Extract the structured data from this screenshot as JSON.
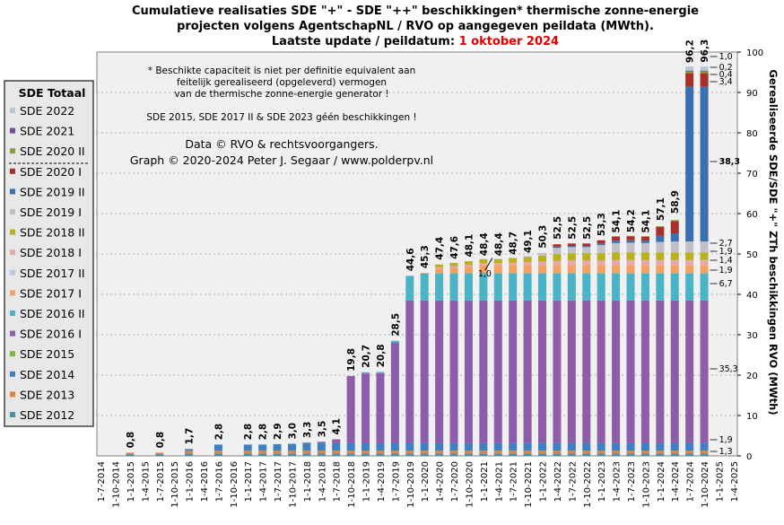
{
  "title": {
    "line1": "Cumulatieve realisaties SDE \"+\" - SDE \"++\" beschikkingen*  thermische zonne-energie",
    "line2": "projecten volgens AgentschapNL  / RVO op aangegeven peildata (MWth).",
    "line3_prefix": "Laatste update / peildatum: ",
    "line3_date": "1 oktober 2024"
  },
  "notes": {
    "line1": "* Beschikte capaciteit is niet per definitie equivalent aan",
    "line2": "feitelijk gerealiseerd (opgeleverd) vermogen",
    "line3": "van de thermische zonne-energie generator !",
    "line4": "SDE 2015, SDE 2017 II & SDE 2023 géén beschikkingen !",
    "credit1": "Data © RVO & rechtsvoorgangers.",
    "credit2": "Graph  © 2020-2024  Peter J. Segaar / www.polderpv.nl"
  },
  "colors": {
    "SDE 2012": "#4a8fa8",
    "SDE 2013": "#e0843c",
    "SDE 2014": "#3f7fc4",
    "SDE 2015": "#7fb64a",
    "SDE 2016 I": "#8e5ca8",
    "SDE 2016 II": "#4bb3c8",
    "SDE 2017 I": "#f4a060",
    "SDE 2017 II": "#b8c8e0",
    "SDE 2018 I": "#e6a8a8",
    "SDE 2018 II": "#b8b020",
    "SDE 2019 I": "#c0c0c8",
    "SDE 2019 II": "#3a6fb0",
    "SDE 2020 I": "#a83028",
    "SDE 2020 II": "#8aa03a",
    "SDE 2021": "#7a4a9a",
    "SDE 2022": "#b0c8d8",
    "plot_bg": "#f0f0f0",
    "legend_bg": "#e8e8e8",
    "accent_red": "#e00000"
  },
  "legend": {
    "title": "SDE Totaal",
    "items": [
      "SDE 2022",
      "SDE 2021",
      "SDE 2020 II",
      "SDE 2020 I",
      "SDE 2019 II",
      "SDE 2019 I",
      "SDE 2018 II",
      "SDE 2018 I",
      "SDE 2017 II",
      "SDE 2017 I",
      "SDE 2016 II",
      "SDE 2016 I",
      "SDE 2015",
      "SDE 2014",
      "SDE 2013",
      "SDE 2012"
    ],
    "highlighted": "SDE 2016 I"
  },
  "chart_data": {
    "type": "bar",
    "stacked": true,
    "ylabel": "Gerealiseerde SDE/SDE \"+\" ZTh beschikkingen RVO (MWth)",
    "ylim": [
      0,
      100
    ],
    "yticks": [
      0,
      10,
      20,
      30,
      40,
      50,
      60,
      70,
      80,
      90,
      100
    ],
    "y_axis_position": "right",
    "grid": true,
    "legend_position": "left",
    "categories": [
      "1-7-2014",
      "1-10-2014",
      "1-1-2015",
      "1-4-2015",
      "1-7-2015",
      "1-10-2015",
      "1-1-2016",
      "1-4-2016",
      "1-7-2016",
      "1-10-2016",
      "1-1-2017",
      "1-4-2017",
      "1-7-2017",
      "1-10-2017",
      "1-1-2018",
      "1-4-2018",
      "1-7-2018",
      "1-10-2018",
      "1-1-2019",
      "1-4-2019",
      "1-7-2019",
      "1-10-2019",
      "1-1-2020",
      "1-4-2020",
      "1-7-2020",
      "1-10-2020",
      "1-1-2021",
      "1-4-2021",
      "1-7-2021",
      "1-10-2021",
      "1-1-2022",
      "1-4-2022",
      "1-7-2022",
      "1-10-2022",
      "1-1-2023",
      "1-4-2023",
      "1-7-2023",
      "1-10-2023",
      "1-1-2024",
      "1-4-2024",
      "1-7-2024",
      "1-10-2024",
      "1-1-2025",
      "1-4-2025"
    ],
    "totals": [
      null,
      null,
      0.8,
      null,
      0.8,
      null,
      1.7,
      null,
      2.8,
      null,
      2.8,
      2.8,
      2.9,
      3.0,
      3.3,
      3.5,
      4.1,
      19.8,
      20.7,
      20.8,
      28.5,
      44.6,
      45.3,
      47.4,
      47.6,
      48.1,
      48.4,
      48.4,
      48.7,
      49.1,
      50.3,
      52.5,
      52.5,
      52.5,
      53.3,
      54.1,
      54.2,
      54.1,
      57.1,
      58.9,
      96.2,
      96.3,
      null,
      null
    ],
    "bar_labels": [
      "",
      "",
      "0,8",
      "",
      "0,8",
      "",
      "1,7",
      "",
      "2,8",
      "",
      "2,8",
      "2,8",
      "2,9",
      "3,0",
      "3,3",
      "3,5",
      "4,1",
      "19,8",
      "20,7",
      "20,8",
      "28,5",
      "44,6",
      "45,3",
      "47,4",
      "47,6",
      "48,1",
      "48,4",
      "48,4",
      "48,7",
      "49,1",
      "50,3",
      "52,5",
      "52,5",
      "52,5",
      "53,3",
      "54,1",
      "54,2",
      "54,1",
      "57,1",
      "58,9",
      "96,2",
      "96,3",
      "",
      ""
    ],
    "series": [
      {
        "name": "SDE 2012",
        "values": [
          0,
          0,
          0.5,
          0,
          0.5,
          0,
          0.6,
          0,
          0.6,
          0,
          0.6,
          0.6,
          0.6,
          0.6,
          0.6,
          0.6,
          0.6,
          0.6,
          0.6,
          0.6,
          0.6,
          0.6,
          0.6,
          0.6,
          0.6,
          0.6,
          0.6,
          0.6,
          0.6,
          0.6,
          0.6,
          0.6,
          0.6,
          0.6,
          0.6,
          0.6,
          0.6,
          0.6,
          0.6,
          0.6,
          0.6,
          0.6,
          0,
          0
        ]
      },
      {
        "name": "SDE 2013",
        "values": [
          0,
          0,
          0.3,
          0,
          0.3,
          0,
          0.7,
          0,
          0.7,
          0,
          0.7,
          0.7,
          0.7,
          0.7,
          0.7,
          0.7,
          0.7,
          0.7,
          0.7,
          0.7,
          0.7,
          0.7,
          0.7,
          0.7,
          0.7,
          0.7,
          0.7,
          0.7,
          0.7,
          0.7,
          0.7,
          0.7,
          0.7,
          0.7,
          0.7,
          0.7,
          0.7,
          0.7,
          0.7,
          0.7,
          0.7,
          0.7,
          0,
          0
        ]
      },
      {
        "name": "SDE 2014",
        "values": [
          0,
          0,
          0,
          0,
          0,
          0,
          0.4,
          0,
          1.5,
          0,
          1.5,
          1.5,
          1.6,
          1.7,
          1.9,
          1.9,
          1.9,
          1.9,
          1.9,
          1.9,
          1.9,
          1.9,
          1.9,
          1.9,
          1.9,
          1.9,
          1.9,
          1.9,
          1.9,
          1.9,
          1.9,
          1.9,
          1.9,
          1.9,
          1.9,
          1.9,
          1.9,
          1.9,
          1.9,
          1.9,
          1.9,
          1.9,
          0,
          0
        ]
      },
      {
        "name": "SDE 2015",
        "values": [
          0,
          0,
          0,
          0,
          0,
          0,
          0,
          0,
          0,
          0,
          0,
          0,
          0,
          0,
          0,
          0,
          0,
          0,
          0,
          0,
          0,
          0,
          0,
          0,
          0,
          0,
          0,
          0,
          0,
          0,
          0,
          0,
          0,
          0,
          0,
          0,
          0,
          0,
          0,
          0,
          0,
          0,
          0,
          0
        ]
      },
      {
        "name": "SDE 2016 I",
        "values": [
          0,
          0,
          0,
          0,
          0,
          0,
          0,
          0,
          0,
          0,
          0,
          0,
          0,
          0,
          0.1,
          0.3,
          0.9,
          16.6,
          17.2,
          17.3,
          24.8,
          35.3,
          35.3,
          35.3,
          35.3,
          35.3,
          35.3,
          35.3,
          35.3,
          35.3,
          35.3,
          35.3,
          35.3,
          35.3,
          35.3,
          35.3,
          35.3,
          35.3,
          35.3,
          35.3,
          35.3,
          35.3,
          0,
          0
        ]
      },
      {
        "name": "SDE 2016 II",
        "values": [
          0,
          0,
          0,
          0,
          0,
          0,
          0,
          0,
          0,
          0,
          0,
          0,
          0,
          0,
          0,
          0,
          0,
          0,
          0.3,
          0.3,
          0.5,
          6.1,
          6.7,
          6.7,
          6.7,
          6.7,
          6.7,
          6.7,
          6.7,
          6.7,
          6.7,
          6.7,
          6.7,
          6.7,
          6.7,
          6.7,
          6.7,
          6.7,
          6.7,
          6.7,
          6.7,
          6.7,
          0,
          0
        ]
      },
      {
        "name": "SDE 2017 I",
        "values": [
          0,
          0,
          0,
          0,
          0,
          0,
          0,
          0,
          0,
          0,
          0,
          0,
          0,
          0,
          0,
          0,
          0,
          0,
          0,
          0,
          0,
          0,
          0.1,
          1.2,
          1.4,
          1.6,
          1.9,
          1.9,
          1.9,
          1.9,
          1.9,
          1.9,
          1.9,
          1.9,
          1.9,
          1.9,
          1.9,
          1.9,
          1.9,
          1.9,
          1.9,
          1.9,
          0,
          0
        ]
      },
      {
        "name": "SDE 2017 II",
        "values": [
          0,
          0,
          0,
          0,
          0,
          0,
          0,
          0,
          0,
          0,
          0,
          0,
          0,
          0,
          0,
          0,
          0,
          0,
          0,
          0,
          0,
          0,
          0,
          0,
          0,
          0,
          0,
          0,
          0,
          0,
          0,
          0,
          0,
          0,
          0,
          0,
          0,
          0,
          0,
          0,
          0,
          0,
          0,
          0
        ]
      },
      {
        "name": "SDE 2018 I",
        "values": [
          0,
          0,
          0,
          0,
          0,
          0,
          0,
          0,
          0,
          0,
          0,
          0,
          0,
          0,
          0,
          0,
          0,
          0,
          0,
          0,
          0,
          0,
          0,
          0.3,
          0.4,
          0.5,
          0.6,
          0.6,
          0.7,
          0.9,
          1.0,
          1.2,
          1.3,
          1.3,
          1.3,
          1.4,
          1.4,
          1.4,
          1.4,
          1.4,
          1.4,
          1.4,
          0,
          0
        ]
      },
      {
        "name": "SDE 2018 II",
        "values": [
          0,
          0,
          0,
          0,
          0,
          0,
          0,
          0,
          0,
          0,
          0,
          0,
          0,
          0,
          0,
          0,
          0,
          0,
          0,
          0,
          0,
          0,
          0,
          0.7,
          0.8,
          0.9,
          1.0,
          1.0,
          1.1,
          1.2,
          1.5,
          1.7,
          1.8,
          1.8,
          1.8,
          1.9,
          1.9,
          1.9,
          1.9,
          1.9,
          1.9,
          1.9,
          0,
          0
        ]
      },
      {
        "name": "SDE 2019 I",
        "values": [
          0,
          0,
          0,
          0,
          0,
          0,
          0,
          0,
          0,
          0,
          0,
          0,
          0,
          0,
          0,
          0,
          0,
          0,
          0,
          0,
          0,
          0,
          0,
          0,
          0,
          0,
          0.1,
          0.1,
          0.2,
          0.3,
          0.7,
          1.5,
          1.5,
          1.5,
          2.0,
          2.3,
          2.4,
          2.3,
          2.6,
          2.7,
          2.7,
          2.7,
          0,
          0
        ]
      },
      {
        "name": "SDE 2019 II",
        "values": [
          0,
          0,
          0,
          0,
          0,
          0,
          0,
          0,
          0,
          0,
          0,
          0,
          0,
          0,
          0,
          0,
          0,
          0,
          0,
          0,
          0,
          0,
          0,
          0,
          0,
          0,
          0,
          0,
          0,
          0,
          0,
          0.3,
          0.3,
          0.3,
          0.4,
          0.6,
          0.6,
          0.6,
          1.5,
          2.0,
          38.3,
          38.3,
          0,
          0
        ]
      },
      {
        "name": "SDE 2020 I",
        "values": [
          0,
          0,
          0,
          0,
          0,
          0,
          0,
          0,
          0,
          0,
          0,
          0,
          0,
          0,
          0,
          0,
          0,
          0,
          0,
          0,
          0,
          0,
          0,
          0,
          0,
          0,
          0,
          0,
          0,
          0,
          0,
          0.6,
          0.6,
          0.6,
          0.8,
          1.0,
          1.0,
          1.0,
          2.2,
          3.0,
          3.4,
          3.4,
          0,
          0
        ]
      },
      {
        "name": "SDE 2020 II",
        "values": [
          0,
          0,
          0,
          0,
          0,
          0,
          0,
          0,
          0,
          0,
          0,
          0,
          0,
          0,
          0,
          0,
          0,
          0,
          0,
          0,
          0,
          0,
          0,
          0,
          0,
          0,
          0,
          0,
          0,
          0,
          0,
          0,
          0,
          0,
          0,
          0.1,
          0.1,
          0.1,
          0.2,
          0.3,
          0.4,
          0.4,
          0,
          0
        ]
      },
      {
        "name": "SDE 2021",
        "values": [
          0,
          0,
          0,
          0,
          0,
          0,
          0,
          0,
          0,
          0,
          0,
          0,
          0,
          0,
          0,
          0,
          0,
          0,
          0,
          0,
          0,
          0,
          0,
          0,
          0,
          0,
          0,
          0,
          0,
          0,
          0,
          0,
          0,
          0,
          0,
          0,
          0,
          0,
          0,
          0,
          0.2,
          0.2,
          0,
          0
        ]
      },
      {
        "name": "SDE 2022",
        "values": [
          0,
          0,
          0,
          0,
          0,
          0,
          0,
          0,
          0,
          0,
          0,
          0,
          0,
          0,
          0,
          0,
          0,
          0,
          0,
          0,
          0,
          0,
          0,
          0,
          0,
          0,
          0,
          0,
          0,
          0,
          0,
          0,
          0,
          0,
          0,
          0,
          0,
          0,
          0,
          0,
          1.0,
          1.0,
          0,
          0
        ]
      }
    ],
    "right_annotations": [
      {
        "value": 1.3,
        "label": "1,3"
      },
      {
        "value": 1.9,
        "label": "1,9"
      },
      {
        "value": 35.3,
        "label": "35,3"
      },
      {
        "value": 6.7,
        "label": "6,7"
      },
      {
        "value": 1.9,
        "label": "1,9"
      },
      {
        "value": 1.4,
        "label": "1,4"
      },
      {
        "value": 1.9,
        "label": "1,9"
      },
      {
        "value": 2.7,
        "label": "2,7"
      },
      {
        "value": 38.3,
        "label": "38,3",
        "highlight": true
      },
      {
        "value": 3.4,
        "label": "3,4"
      },
      {
        "value": 0.4,
        "label": "0,4"
      },
      {
        "value": 0.2,
        "label": "0,2"
      },
      {
        "value": 1.0,
        "label": "1,0"
      }
    ],
    "extra_annotation": {
      "label": "1,0",
      "category": "1-1-2021"
    }
  }
}
